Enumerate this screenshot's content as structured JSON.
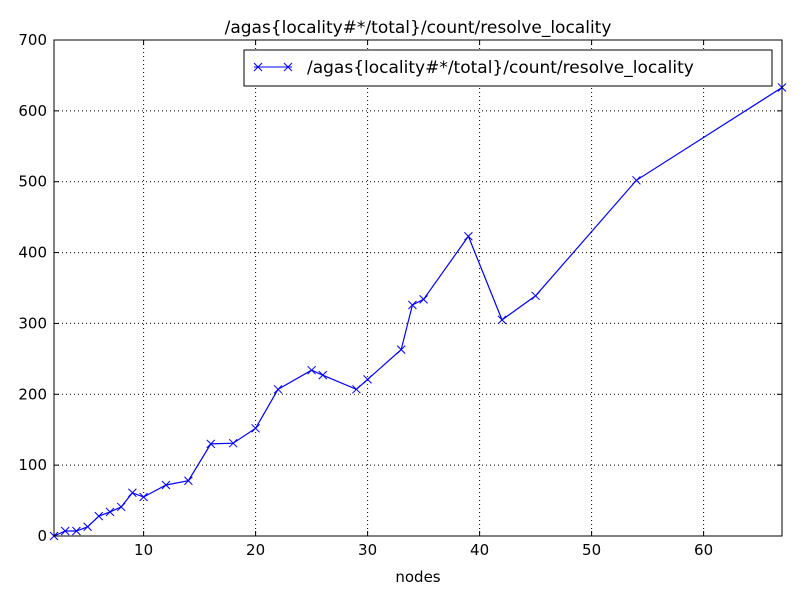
{
  "chart_data": {
    "type": "line",
    "title": "/agas{locality#*/total}/count/resolve_locality",
    "xlabel": "nodes",
    "ylabel": "",
    "xlim": [
      2,
      67
    ],
    "ylim": [
      0,
      700
    ],
    "xticks": [
      10,
      20,
      30,
      40,
      50,
      60
    ],
    "yticks": [
      0,
      100,
      200,
      300,
      400,
      500,
      600,
      700
    ],
    "grid": true,
    "legend_position": "upper right",
    "series": [
      {
        "name": "/agas{locality#*/total}/count/resolve_locality",
        "color": "#0000ff",
        "marker": "x",
        "x": [
          2,
          3,
          4,
          5,
          6,
          7,
          8,
          9,
          10,
          12,
          14,
          16,
          18,
          20,
          22,
          25,
          26,
          29,
          30,
          33,
          34,
          35,
          39,
          42,
          45,
          54,
          67
        ],
        "y": [
          0,
          7,
          7,
          13,
          28,
          34,
          41,
          61,
          55,
          72,
          78,
          130,
          131,
          152,
          207,
          234,
          227,
          207,
          221,
          263,
          326,
          334,
          423,
          305,
          339,
          502,
          633
        ]
      }
    ]
  }
}
